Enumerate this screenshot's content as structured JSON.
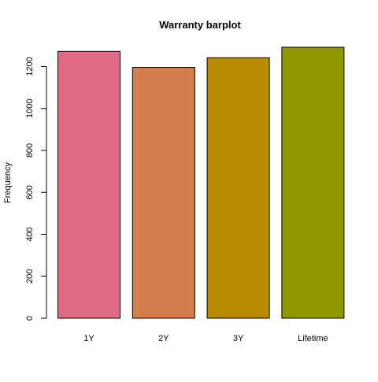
{
  "chart_data": {
    "type": "bar",
    "title": "Warranty barplot",
    "xlabel": "",
    "ylabel": "Frequency",
    "categories": [
      "1Y",
      "2Y",
      "3Y",
      "Lifetime"
    ],
    "values": [
      1272,
      1196,
      1242,
      1292
    ],
    "colors": [
      "#E16A86",
      "#D57E4D",
      "#B88A00",
      "#909800"
    ],
    "bar_border_color": "#000000",
    "ylim": [
      0,
      1292
    ],
    "yticks": [
      0,
      200,
      400,
      600,
      800,
      1000,
      1200
    ],
    "ytick_labels": [
      "0",
      "200",
      "400",
      "600",
      "800",
      "1000",
      "1200"
    ],
    "grid": false,
    "legend": "none"
  }
}
